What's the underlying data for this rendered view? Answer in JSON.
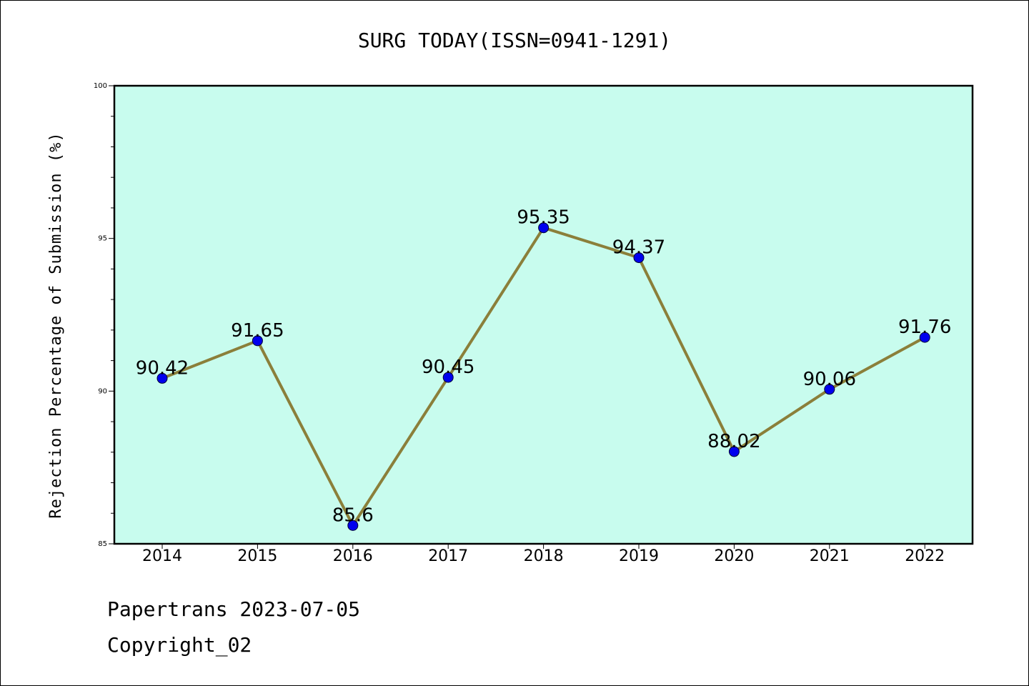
{
  "chart_data": {
    "type": "line",
    "title": "SURG TODAY(ISSN=0941-1291)",
    "ylabel": "Rejection Percentage of Submission (%)",
    "xlabel": "",
    "categories": [
      "2014",
      "2015",
      "2016",
      "2017",
      "2018",
      "2019",
      "2020",
      "2021",
      "2022"
    ],
    "values": [
      90.42,
      91.65,
      85.6,
      90.45,
      95.35,
      94.37,
      88.02,
      90.06,
      91.76
    ],
    "data_labels": [
      "90.42",
      "91.65",
      "85.6",
      "90.45",
      "95.35",
      "94.37",
      "88.02",
      "90.06",
      "91.76"
    ],
    "ylim": [
      85,
      100
    ],
    "yticks": [
      "85",
      "90",
      "95",
      "100"
    ],
    "grid": false,
    "colors": {
      "background": "#c8fcee",
      "line": "#8b7f3a",
      "marker": "#0000ee"
    }
  },
  "footer": {
    "line1": "Papertrans 2023-07-05",
    "line2": "Copyright_02"
  }
}
